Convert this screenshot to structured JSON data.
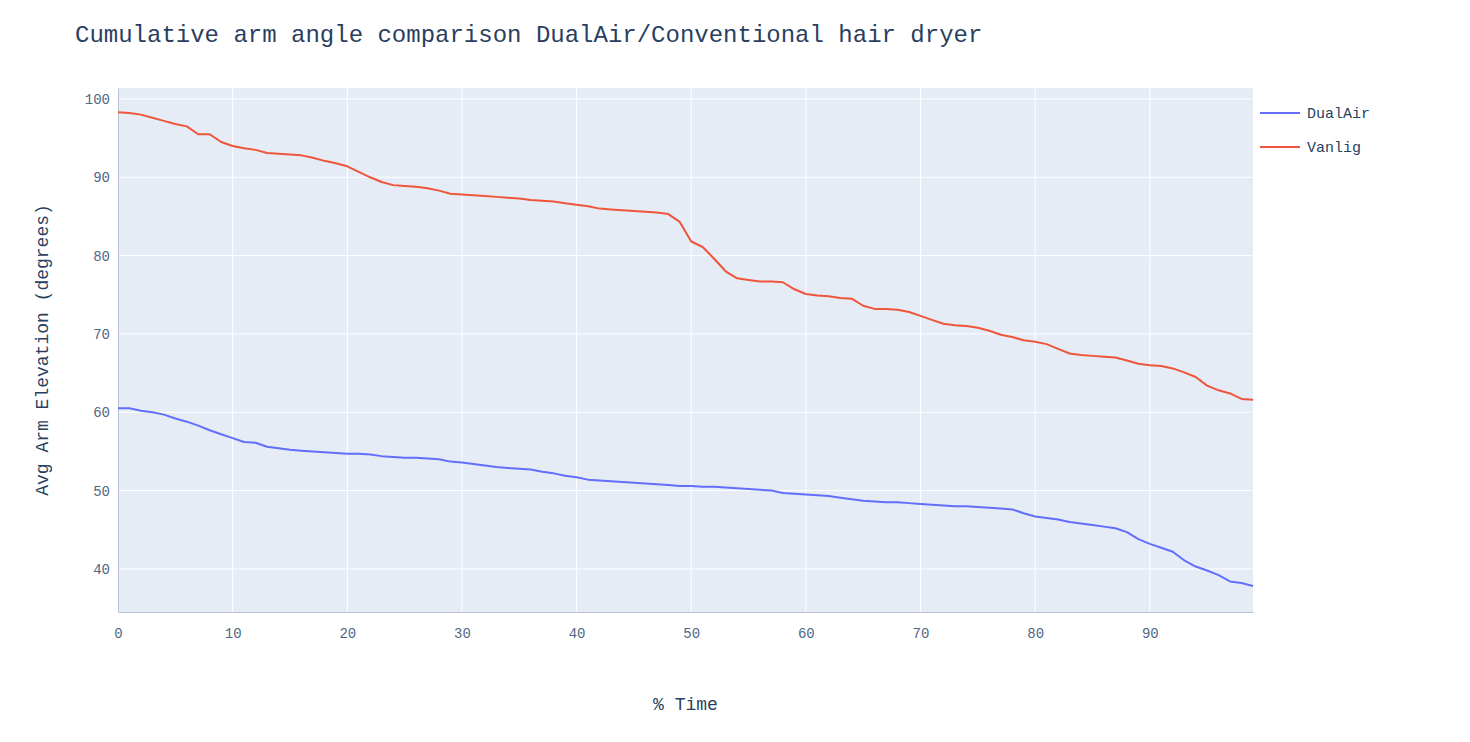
{
  "chart_data": {
    "type": "line",
    "title": "Cumulative arm angle comparison DualAir/Conventional hair dryer",
    "x_label": "% Time",
    "y_label": "Avg Arm Elevation (degrees)",
    "x": [
      0,
      1,
      2,
      3,
      4,
      5,
      6,
      7,
      8,
      9,
      10,
      11,
      12,
      13,
      14,
      15,
      16,
      17,
      18,
      19,
      20,
      21,
      22,
      23,
      24,
      25,
      26,
      27,
      28,
      29,
      30,
      31,
      32,
      33,
      34,
      35,
      36,
      37,
      38,
      39,
      40,
      41,
      42,
      43,
      44,
      45,
      46,
      47,
      48,
      49,
      50,
      51,
      52,
      53,
      54,
      55,
      56,
      57,
      58,
      59,
      60,
      61,
      62,
      63,
      64,
      65,
      66,
      67,
      68,
      69,
      70,
      71,
      72,
      73,
      74,
      75,
      76,
      77,
      78,
      79,
      80,
      81,
      82,
      83,
      84,
      85,
      86,
      87,
      88,
      89,
      90,
      91,
      92,
      93,
      94,
      95,
      96,
      97,
      98,
      99
    ],
    "series": [
      {
        "name": "DualAir",
        "color": "#636efa",
        "values": [
          60.5,
          60.5,
          60.2,
          60.0,
          59.7,
          59.2,
          58.8,
          58.3,
          57.7,
          57.2,
          56.7,
          56.2,
          56.1,
          55.6,
          55.4,
          55.2,
          55.1,
          55.0,
          54.9,
          54.8,
          54.7,
          54.7,
          54.6,
          54.4,
          54.3,
          54.2,
          54.2,
          54.1,
          54.0,
          53.7,
          53.6,
          53.4,
          53.2,
          53.0,
          52.9,
          52.8,
          52.7,
          52.4,
          52.2,
          51.9,
          51.7,
          51.4,
          51.3,
          51.2,
          51.1,
          51.0,
          50.9,
          50.8,
          50.7,
          50.6,
          50.6,
          50.5,
          50.5,
          50.4,
          50.3,
          50.2,
          50.1,
          50.0,
          49.7,
          49.6,
          49.5,
          49.4,
          49.3,
          49.1,
          48.9,
          48.7,
          48.6,
          48.5,
          48.5,
          48.4,
          48.3,
          48.2,
          48.1,
          48.0,
          48.0,
          47.9,
          47.8,
          47.7,
          47.6,
          47.1,
          46.7,
          46.5,
          46.3,
          46.0,
          45.8,
          45.6,
          45.4,
          45.2,
          44.7,
          43.8,
          43.2,
          42.7,
          42.2,
          41.1,
          40.3,
          39.8,
          39.2,
          38.4,
          38.2,
          37.8
        ]
      },
      {
        "name": "Vanlig",
        "color": "#ef553b",
        "values": [
          98.3,
          98.2,
          98.0,
          97.6,
          97.2,
          96.8,
          96.5,
          95.5,
          95.5,
          94.5,
          94.0,
          93.7,
          93.5,
          93.1,
          93.0,
          92.9,
          92.8,
          92.5,
          92.1,
          91.8,
          91.4,
          90.7,
          90.0,
          89.4,
          89.0,
          88.9,
          88.8,
          88.6,
          88.3,
          87.9,
          87.8,
          87.7,
          87.6,
          87.5,
          87.4,
          87.3,
          87.1,
          87.0,
          86.9,
          86.7,
          86.5,
          86.3,
          86.0,
          85.9,
          85.8,
          85.7,
          85.6,
          85.5,
          85.3,
          84.3,
          81.8,
          81.1,
          79.6,
          78.0,
          77.1,
          76.9,
          76.7,
          76.7,
          76.6,
          75.7,
          75.1,
          74.9,
          74.8,
          74.6,
          74.5,
          73.6,
          73.2,
          73.2,
          73.1,
          72.8,
          72.3,
          71.8,
          71.3,
          71.1,
          71.0,
          70.8,
          70.4,
          69.9,
          69.6,
          69.2,
          69.0,
          68.7,
          68.1,
          67.5,
          67.3,
          67.2,
          67.1,
          67.0,
          66.6,
          66.2,
          66.0,
          65.9,
          65.6,
          65.1,
          64.5,
          63.4,
          62.8,
          62.4,
          61.7,
          61.6
        ]
      }
    ],
    "xlim": [
      0,
      99
    ],
    "xticks": [
      0,
      10,
      20,
      30,
      40,
      50,
      60,
      70,
      80,
      90
    ],
    "ylim": [
      34.5,
      101.4
    ],
    "yticks": [
      40,
      50,
      60,
      70,
      80,
      90,
      100
    ],
    "grid": true,
    "legend": "right"
  }
}
